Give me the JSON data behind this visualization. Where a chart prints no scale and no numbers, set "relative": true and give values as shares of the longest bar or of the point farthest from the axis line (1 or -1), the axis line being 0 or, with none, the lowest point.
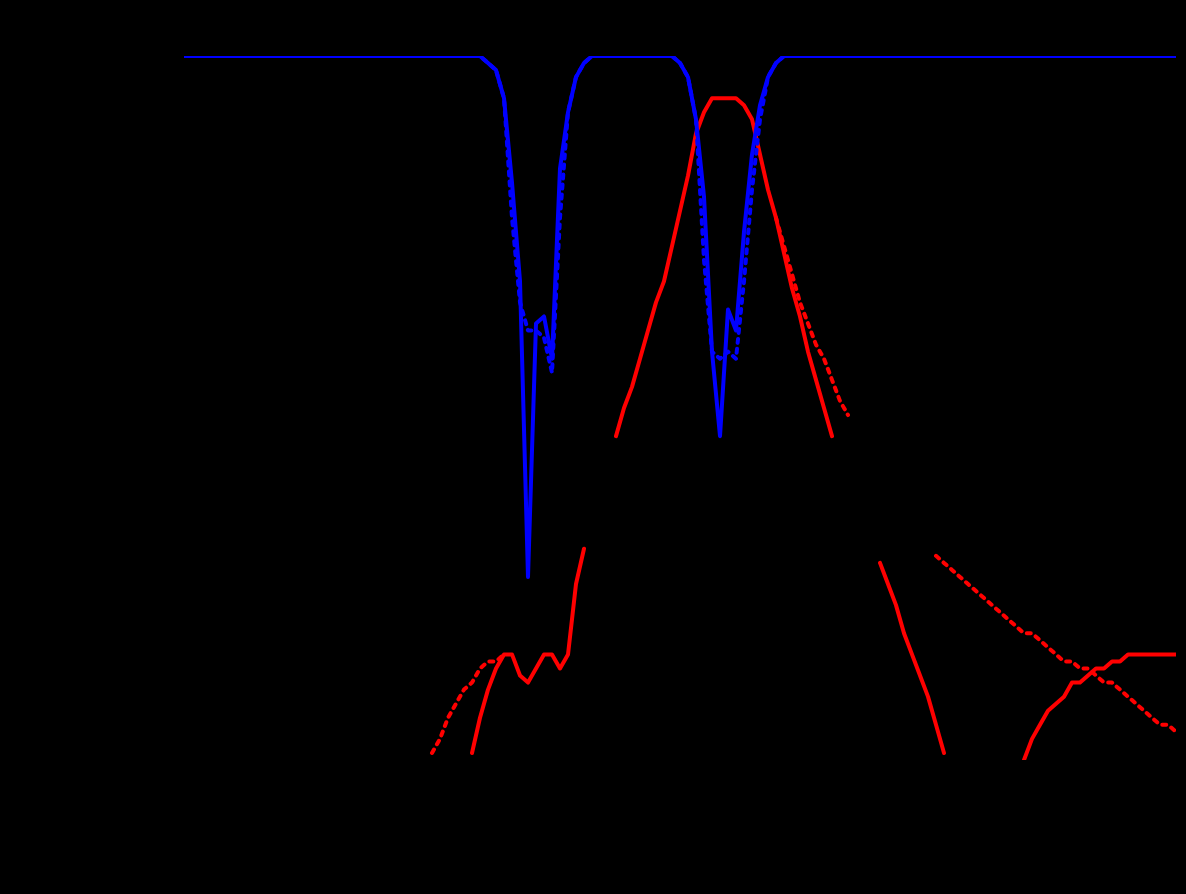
{
  "chart_data": {
    "type": "line",
    "relative": true,
    "marker": "none",
    "legend": false,
    "categories": [
      null,
      null,
      null,
      null,
      null,
      null,
      null,
      null,
      null,
      null,
      null,
      null,
      null,
      null,
      null,
      null,
      null,
      null,
      null,
      null,
      null,
      null,
      null,
      null,
      null,
      null,
      null,
      null,
      null,
      null,
      null,
      null,
      null,
      null,
      null,
      null,
      null,
      null,
      null,
      null,
      null,
      null,
      null,
      null,
      null,
      null,
      null,
      null,
      null,
      null,
      null,
      null,
      null,
      null,
      null,
      null,
      null,
      null,
      null,
      null,
      null,
      null,
      null,
      null,
      null,
      null,
      null,
      null,
      null,
      null,
      null,
      null,
      null,
      null,
      null,
      null,
      null,
      null,
      null,
      null,
      null,
      null,
      null,
      null,
      null,
      null,
      null,
      null,
      null,
      null,
      null,
      null,
      null,
      null,
      null,
      null,
      null,
      null,
      null,
      null,
      null,
      null,
      null,
      null,
      null,
      null,
      null,
      null,
      null,
      null,
      null,
      null,
      null,
      null,
      null,
      null,
      null,
      null,
      null,
      null,
      null,
      null,
      null,
      null,
      null
    ],
    "series": [
      {
        "color": "#0000ff",
        "line_style": "solid",
        "values": [
          1,
          1,
          1,
          1,
          1,
          1,
          1,
          1,
          1,
          1,
          1,
          1,
          1,
          1,
          1,
          1,
          1,
          1,
          1,
          1,
          1,
          1,
          1,
          1,
          1,
          1,
          1,
          1,
          1,
          1,
          1,
          1,
          1,
          1,
          1,
          1,
          1,
          1,
          0.99,
          0.98,
          0.94,
          0.82,
          0.68,
          0.26,
          0.62,
          0.63,
          0.57,
          0.84,
          0.92,
          0.97,
          0.99,
          1,
          1,
          1,
          1,
          1,
          1,
          1,
          1,
          1,
          1,
          1,
          0.99,
          0.97,
          0.91,
          0.8,
          0.58,
          0.46,
          0.64,
          0.61,
          0.75,
          0.86,
          0.93,
          0.97,
          0.99,
          1,
          1,
          1,
          1,
          1,
          1,
          1,
          1,
          1,
          1,
          1,
          1,
          1,
          1,
          1,
          1,
          1,
          1,
          1,
          1,
          1,
          1,
          1,
          1,
          1,
          1,
          1,
          1,
          1,
          1,
          1,
          1,
          1,
          1,
          1,
          1,
          1,
          1,
          1,
          1,
          1,
          1,
          1,
          1,
          1,
          1,
          1,
          1,
          1,
          1
        ]
      },
      {
        "color": "#0000ff",
        "line_style": "dotted",
        "values": [
          1,
          1,
          1,
          1,
          1,
          1,
          1,
          1,
          1,
          1,
          1,
          1,
          1,
          1,
          1,
          1,
          1,
          1,
          1,
          1,
          1,
          1,
          1,
          1,
          1,
          1,
          1,
          1,
          1,
          1,
          1,
          1,
          1,
          1,
          1,
          1,
          1,
          1,
          0.99,
          0.98,
          0.94,
          0.77,
          0.65,
          0.61,
          0.61,
          0.6,
          0.55,
          0.77,
          0.92,
          0.97,
          0.99,
          1,
          1,
          1,
          1,
          1,
          1,
          1,
          1,
          1,
          1,
          1,
          0.99,
          0.97,
          0.91,
          0.71,
          0.58,
          0.57,
          0.58,
          0.57,
          0.68,
          0.81,
          0.91,
          0.97,
          0.99,
          1,
          1,
          1,
          1,
          1,
          1,
          1,
          1,
          1,
          1,
          1,
          1,
          1,
          1,
          1,
          1,
          1,
          1,
          1,
          1,
          1,
          1,
          1,
          1,
          1,
          1,
          1,
          1,
          1,
          1,
          1,
          1,
          1,
          1,
          1,
          1,
          1,
          1,
          1,
          1,
          1,
          1,
          1,
          1,
          1,
          1,
          1,
          1,
          1,
          1
        ]
      },
      {
        "color": "#ff0000",
        "line_style": "solid",
        "values": [
          null,
          null,
          null,
          null,
          null,
          null,
          null,
          null,
          null,
          null,
          null,
          null,
          null,
          null,
          null,
          null,
          null,
          null,
          null,
          null,
          null,
          null,
          null,
          null,
          null,
          null,
          null,
          null,
          null,
          null,
          null,
          null,
          null,
          null,
          null,
          null,
          0.01,
          0.06,
          0.1,
          0.13,
          0.15,
          0.15,
          0.12,
          0.11,
          0.13,
          0.15,
          0.15,
          0.13,
          0.15,
          0.25,
          0.3,
          null,
          null,
          null,
          0.46,
          0.5,
          0.53,
          0.57,
          0.61,
          0.65,
          0.68,
          0.73,
          0.78,
          0.83,
          0.89,
          0.92,
          0.94,
          0.94,
          0.94,
          0.94,
          0.93,
          0.91,
          0.86,
          0.81,
          0.77,
          0.72,
          0.67,
          0.63,
          0.58,
          0.54,
          0.5,
          0.46,
          null,
          null,
          null,
          null,
          null,
          0.28,
          0.25,
          0.22,
          0.18,
          0.15,
          0.12,
          0.09,
          0.05,
          0.01,
          null,
          null,
          null,
          null,
          null,
          null,
          null,
          null,
          null,
          0,
          0.03,
          0.05,
          0.07,
          0.08,
          0.09,
          0.11,
          0.11,
          0.12,
          0.13,
          0.13,
          0.14,
          0.14,
          0.15,
          0.15,
          0.15,
          0.15,
          0.15,
          0.15,
          0.15
        ]
      },
      {
        "color": "#ff0000",
        "line_style": "dotted",
        "values": [
          null,
          null,
          null,
          null,
          null,
          null,
          null,
          null,
          null,
          null,
          null,
          null,
          null,
          null,
          null,
          null,
          null,
          null,
          null,
          null,
          null,
          null,
          null,
          null,
          null,
          null,
          null,
          null,
          null,
          null,
          null,
          0.01,
          0.03,
          0.06,
          0.08,
          0.1,
          0.11,
          0.13,
          0.14,
          0.14,
          0.15,
          null,
          null,
          null,
          null,
          null,
          null,
          null,
          null,
          null,
          null,
          null,
          null,
          null,
          null,
          null,
          null,
          null,
          null,
          null,
          null,
          null,
          null,
          null,
          null,
          null,
          null,
          null,
          null,
          null,
          null,
          null,
          null,
          null,
          0.77,
          0.73,
          0.69,
          0.65,
          0.62,
          0.59,
          0.57,
          0.54,
          0.51,
          0.49,
          null,
          null,
          null,
          null,
          null,
          null,
          null,
          null,
          null,
          null,
          0.29,
          0.28,
          0.27,
          0.26,
          0.25,
          0.24,
          0.23,
          0.22,
          0.21,
          0.2,
          0.19,
          0.18,
          0.18,
          0.17,
          0.16,
          0.15,
          0.14,
          0.14,
          0.13,
          0.13,
          0.12,
          0.11,
          0.11,
          0.1,
          0.09,
          0.08,
          0.07,
          0.06,
          0.05,
          0.05,
          0.04
        ]
      }
    ]
  }
}
